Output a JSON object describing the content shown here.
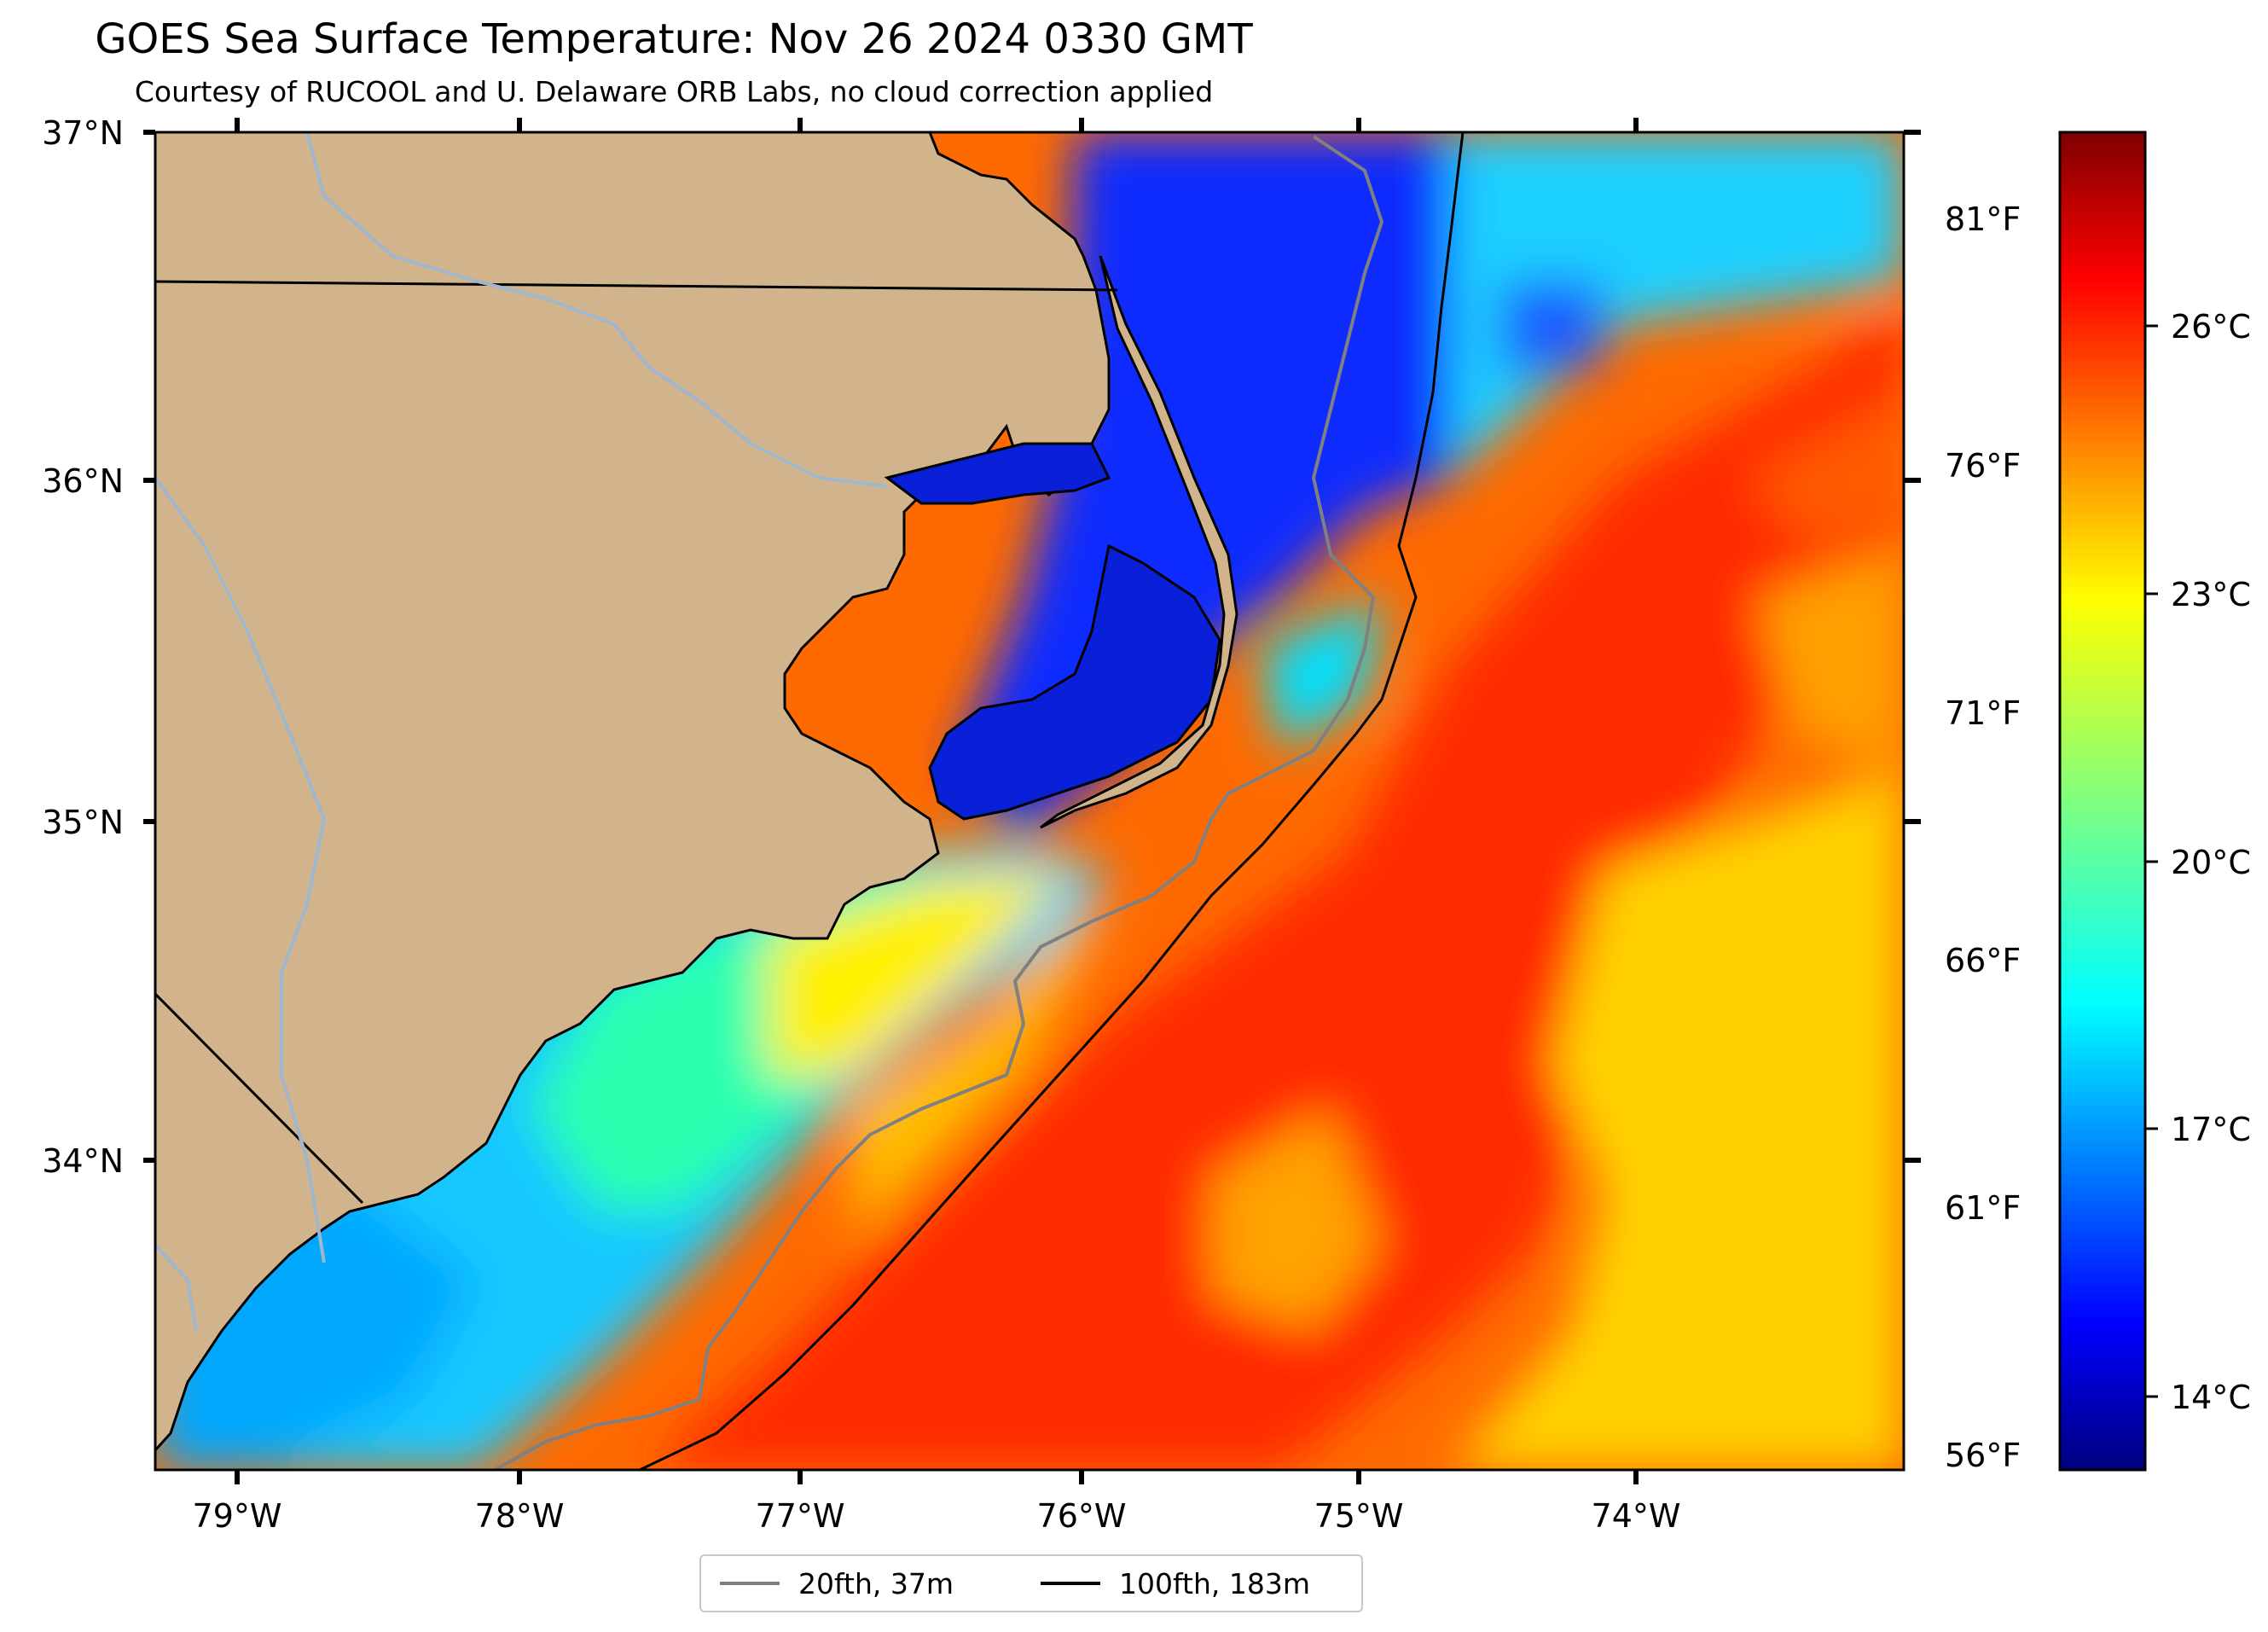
{
  "title": "GOES Sea Surface Temperature: Nov 26 2024 0330 GMT",
  "subtitle": "Courtesy of RUCOOL and U. Delaware ORB Labs, no cloud correction applied",
  "map": {
    "lat_labels": [
      "37°N",
      "36°N",
      "35°N",
      "34°N"
    ],
    "lon_labels": [
      "79°W",
      "78°W",
      "77°W",
      "76°W",
      "75°W",
      "74°W"
    ],
    "right_labels_f": [
      "81°F",
      "76°F",
      "71°F",
      "66°F",
      "61°F",
      "56°F"
    ],
    "colors": {
      "land": "#d2b48c",
      "rivers": "#9fb6cd",
      "no_data": "#ffffff"
    }
  },
  "colorbar": {
    "labels_c": [
      "26°C",
      "23°C",
      "20°C",
      "17°C",
      "14°C"
    ],
    "colormap": "jet"
  },
  "legend": {
    "items": [
      {
        "label": "20fth, 37m",
        "color": "#808080"
      },
      {
        "label": "100fth, 183m",
        "color": "#000000"
      }
    ]
  }
}
